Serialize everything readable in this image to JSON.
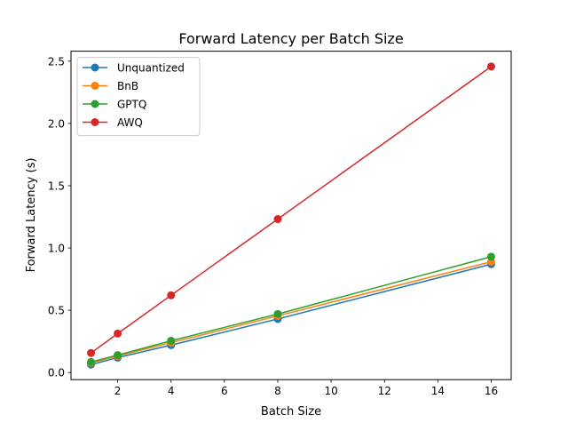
{
  "chart_data": {
    "type": "line",
    "title": "Forward Latency per Batch Size",
    "xlabel": "Batch Size",
    "ylabel": "Forward Latency (s)",
    "x": [
      1,
      2,
      4,
      8,
      16
    ],
    "xlim": [
      0.25,
      16.75
    ],
    "ylim": [
      -0.057,
      2.58
    ],
    "xticks": [
      2,
      4,
      6,
      8,
      10,
      12,
      14,
      16
    ],
    "yticks": [
      0.0,
      0.5,
      1.0,
      1.5,
      2.0,
      2.5
    ],
    "ytick_labels": [
      "0.0",
      "0.5",
      "1.0",
      "1.5",
      "2.0",
      "2.5"
    ],
    "grid": false,
    "legend_position": "top-left",
    "markers": "circle",
    "series": [
      {
        "name": "Unquantized",
        "color": "#1f77b4",
        "values": [
          0.064,
          0.12,
          0.22,
          0.43,
          0.87
        ]
      },
      {
        "name": "BnB",
        "color": "#ff7f0e",
        "values": [
          0.078,
          0.133,
          0.24,
          0.455,
          0.89
        ]
      },
      {
        "name": "GPTQ",
        "color": "#2ca02c",
        "values": [
          0.085,
          0.14,
          0.255,
          0.47,
          0.93
        ]
      },
      {
        "name": "AWQ",
        "color": "#d62728",
        "values": [
          0.157,
          0.313,
          0.62,
          1.232,
          2.457
        ]
      }
    ]
  }
}
